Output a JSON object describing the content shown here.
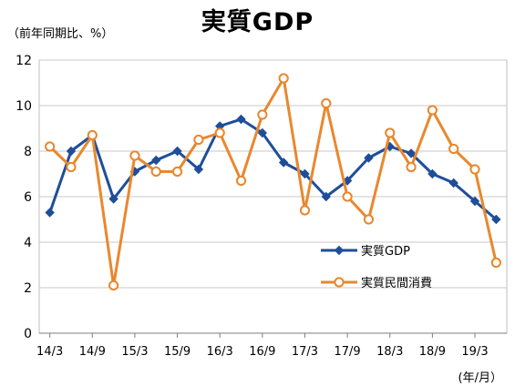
{
  "chart_data": {
    "type": "line",
    "title": "実質GDP",
    "ylabel": "（前年同期比、%）",
    "xlabel": "(年/月）",
    "ylim": [
      0,
      12
    ],
    "yticks": [
      "0",
      "2",
      "4",
      "6",
      "8",
      "10",
      "12"
    ],
    "xtick_labels": [
      "14/3",
      "14/9",
      "15/3",
      "15/9",
      "16/3",
      "16/9",
      "17/3",
      "17/9",
      "18/3",
      "18/9",
      "19/3"
    ],
    "grid": true,
    "legend_position": "lower-right inside plot",
    "x": [
      "14/3",
      "14/6",
      "14/9",
      "14/12",
      "15/3",
      "15/6",
      "15/9",
      "15/12",
      "16/3",
      "16/6",
      "16/9",
      "16/12",
      "17/3",
      "17/6",
      "17/9",
      "17/12",
      "18/3",
      "18/6",
      "18/9",
      "18/12",
      "19/3",
      "19/6"
    ],
    "series": [
      {
        "name": "実質GDP",
        "color": "#1f4e99",
        "marker": "diamond",
        "values": [
          5.3,
          8.0,
          8.7,
          5.9,
          7.1,
          7.6,
          8.0,
          7.2,
          9.1,
          9.4,
          8.8,
          7.5,
          7.0,
          6.0,
          6.7,
          7.7,
          8.2,
          7.9,
          7.0,
          6.6,
          5.8,
          5.0
        ]
      },
      {
        "name": "実質民間消費",
        "color": "#e8882e",
        "marker": "circle",
        "values": [
          8.2,
          7.3,
          8.7,
          2.1,
          7.8,
          7.1,
          7.1,
          8.5,
          8.8,
          6.7,
          9.6,
          11.2,
          5.4,
          10.1,
          6.0,
          5.0,
          8.8,
          7.3,
          9.8,
          8.1,
          7.2,
          3.1
        ]
      }
    ]
  }
}
